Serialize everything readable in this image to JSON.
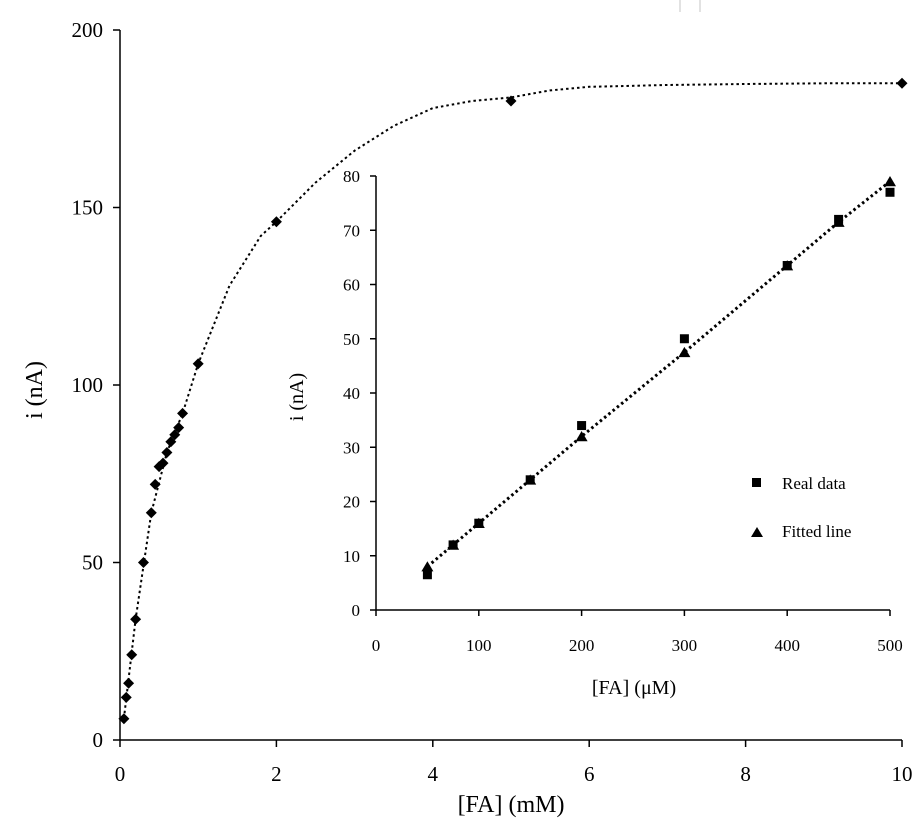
{
  "chart_data": [
    {
      "type": "line",
      "xlabel": "[FA] (mM)",
      "ylabel": "i (nA)",
      "xlim": [
        0,
        10
      ],
      "ylim": [
        0,
        200
      ],
      "xticks": [
        0,
        2,
        4,
        6,
        8,
        10
      ],
      "yticks": [
        0,
        50,
        100,
        150,
        200
      ],
      "grid": false,
      "series": [
        {
          "marker": "diamond",
          "line": "dotted",
          "x": [
            0.05,
            0.08,
            0.11,
            0.15,
            0.2,
            0.3,
            0.4,
            0.45,
            0.5,
            0.55,
            0.6,
            0.65,
            0.7,
            0.75,
            0.8,
            1.0,
            2.0,
            5.0,
            10.0
          ],
          "y": [
            6,
            12,
            16,
            24,
            34,
            50,
            64,
            72,
            77,
            78,
            81,
            84,
            86,
            88,
            92,
            106,
            146,
            180,
            185
          ]
        }
      ],
      "fit_curve": {
        "x": [
          0.05,
          0.2,
          0.4,
          0.6,
          0.8,
          1.0,
          1.4,
          1.8,
          2.0,
          2.5,
          3.0,
          3.5,
          4.0,
          4.5,
          5.0,
          5.5,
          6.0,
          7.0,
          8.0,
          9.0,
          10.0
        ],
        "y": [
          6,
          34,
          64,
          81,
          92,
          106,
          128,
          142,
          146,
          157,
          166,
          173,
          178,
          180,
          181,
          183,
          184,
          184.5,
          184.8,
          185,
          185
        ]
      }
    },
    {
      "type": "line",
      "xlabel": "[FA] (μM)",
      "ylabel": "i (nA)",
      "xlim": [
        0,
        500
      ],
      "ylim": [
        0,
        80
      ],
      "xticks": [
        0,
        100,
        200,
        300,
        400,
        500
      ],
      "yticks": [
        0,
        10,
        20,
        30,
        40,
        50,
        60,
        70,
        80
      ],
      "grid": false,
      "legend_position": "right",
      "series": [
        {
          "name": "Real data",
          "marker": "square",
          "x": [
            50,
            75,
            100,
            150,
            200,
            300,
            400,
            450,
            500
          ],
          "y": [
            6.5,
            12,
            16,
            24,
            34,
            50,
            63.5,
            72,
            77
          ]
        },
        {
          "name": "Fitted line",
          "marker": "triangle",
          "line": "dotted",
          "x": [
            50,
            75,
            100,
            150,
            200,
            300,
            400,
            450,
            500
          ],
          "y": [
            8,
            12,
            16,
            24,
            32,
            47.5,
            63.5,
            71.5,
            79
          ]
        }
      ]
    }
  ]
}
